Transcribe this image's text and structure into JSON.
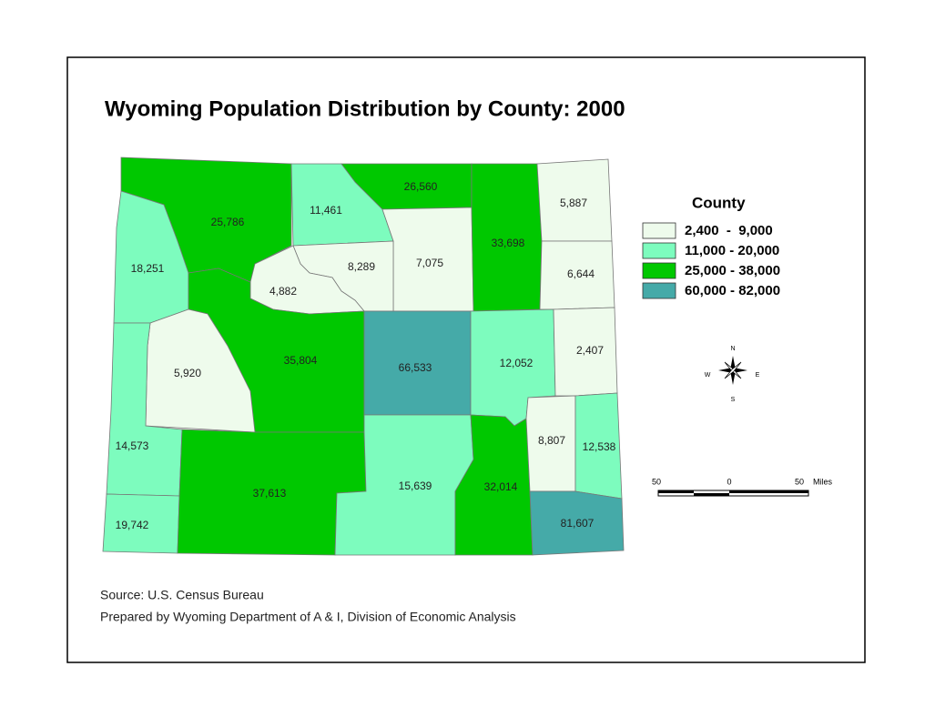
{
  "title": "Wyoming Population Distribution by County: 2000",
  "counties": [
    {
      "label": "25,786",
      "class": 2
    },
    {
      "label": "18,251",
      "class": 1
    },
    {
      "label": "11,461",
      "class": 1
    },
    {
      "label": "26,560",
      "class": 2
    },
    {
      "label": "7,075",
      "class": 0
    },
    {
      "label": "8,289",
      "class": 0
    },
    {
      "label": "4,882",
      "class": 0
    },
    {
      "label": "33,698",
      "class": 2
    },
    {
      "label": "5,887",
      "class": 0
    },
    {
      "label": "6,644",
      "class": 0
    },
    {
      "label": "35,804",
      "class": 2
    },
    {
      "label": "5,920",
      "class": 0
    },
    {
      "label": "14,573",
      "class": 1
    },
    {
      "label": "19,742",
      "class": 1
    },
    {
      "label": "37,613",
      "class": 2
    },
    {
      "label": "66,533",
      "class": 3
    },
    {
      "label": "15,639",
      "class": 1
    },
    {
      "label": "12,052",
      "class": 1
    },
    {
      "label": "2,407",
      "class": 0
    },
    {
      "label": "32,014",
      "class": 2
    },
    {
      "label": "8,807",
      "class": 0
    },
    {
      "label": "12,538",
      "class": 1
    },
    {
      "label": "81,607",
      "class": 3
    }
  ],
  "legend": {
    "title": "County",
    "items": [
      {
        "label": "2,400  -  9,000",
        "color": "#eefbec"
      },
      {
        "label": "11,000 - 20,000",
        "color": "#7dfcbe"
      },
      {
        "label": "25,000 - 38,000",
        "color": "#00c800"
      },
      {
        "label": "60,000 - 82,000",
        "color": "#45aaa8"
      }
    ]
  },
  "compass": {
    "n": "N",
    "e": "E",
    "s": "S",
    "w": "W"
  },
  "scale_bar": {
    "labels": [
      "50",
      "0",
      "50"
    ],
    "unit": "Miles"
  },
  "notes": [
    "Source: U.S. Census Bureau",
    "Prepared by Wyoming Department of A & I, Division of Economic Analysis"
  ]
}
